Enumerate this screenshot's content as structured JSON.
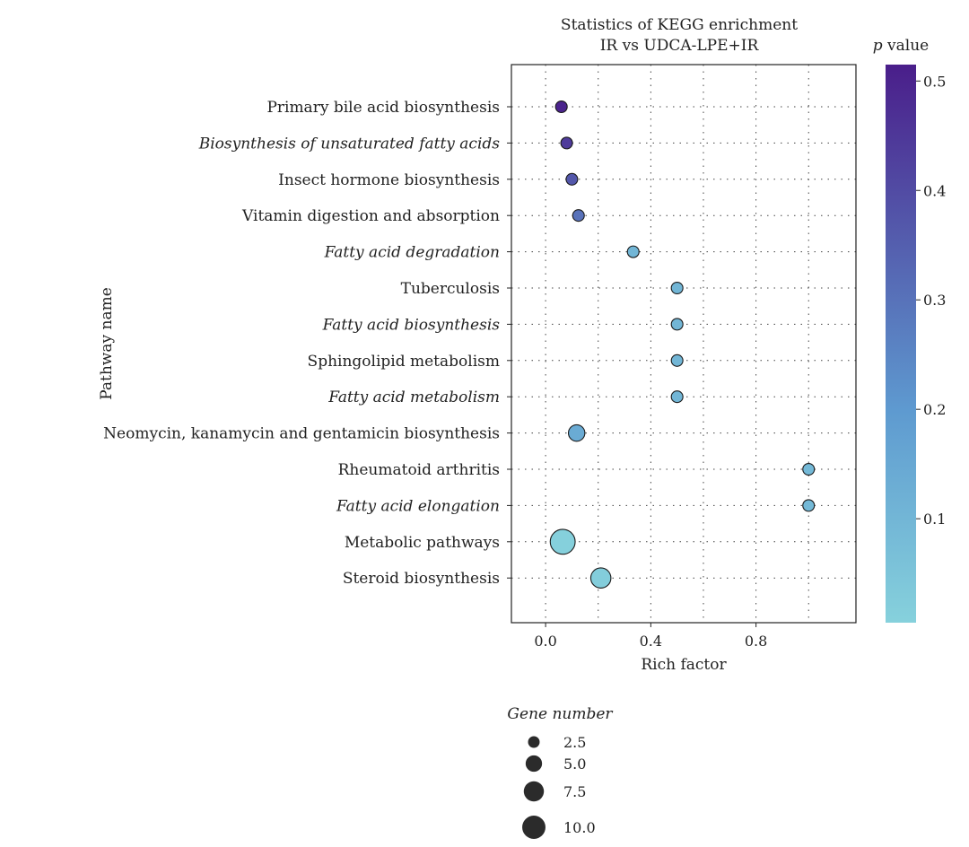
{
  "chart_data": {
    "type": "scatter",
    "title": "Statistics of KEGG enrichment",
    "subtitle": "IR vs UDCA-LPE+IR",
    "xlabel": "Rich factor",
    "ylabel": "Pathway name",
    "xlim": [
      -0.13,
      1.18
    ],
    "x_ticks": [
      0.0,
      0.4,
      0.8
    ],
    "x_tick_labels": [
      "0.0",
      "0.4",
      "0.8"
    ],
    "grid": true,
    "points": [
      {
        "pathway": "Primary bile acid biosynthesis",
        "italic": false,
        "rich_factor": 0.06,
        "p_value": 0.5,
        "gene_number": 2.5
      },
      {
        "pathway": "Biosynthesis of unsaturated fatty acids",
        "italic": true,
        "rich_factor": 0.08,
        "p_value": 0.44,
        "gene_number": 2.5
      },
      {
        "pathway": "Insect hormone biosynthesis",
        "italic": false,
        "rich_factor": 0.1,
        "p_value": 0.37,
        "gene_number": 2.5
      },
      {
        "pathway": "Vitamin digestion and absorption",
        "italic": false,
        "rich_factor": 0.125,
        "p_value": 0.3,
        "gene_number": 2.5
      },
      {
        "pathway": "Fatty acid degradation",
        "italic": true,
        "rich_factor": 0.333,
        "p_value": 0.1,
        "gene_number": 2.5
      },
      {
        "pathway": "Tuberculosis",
        "italic": false,
        "rich_factor": 0.5,
        "p_value": 0.1,
        "gene_number": 2.5
      },
      {
        "pathway": "Fatty acid biosynthesis",
        "italic": true,
        "rich_factor": 0.5,
        "p_value": 0.1,
        "gene_number": 2.5
      },
      {
        "pathway": "Sphingolipid metabolism",
        "italic": false,
        "rich_factor": 0.5,
        "p_value": 0.1,
        "gene_number": 2.5
      },
      {
        "pathway": "Fatty acid metabolism",
        "italic": true,
        "rich_factor": 0.5,
        "p_value": 0.1,
        "gene_number": 2.5
      },
      {
        "pathway": "Neomycin, kanamycin and gentamicin biosynthesis",
        "italic": false,
        "rich_factor": 0.118,
        "p_value": 0.14,
        "gene_number": 5.0
      },
      {
        "pathway": "Rheumatoid arthritis",
        "italic": false,
        "rich_factor": 1.0,
        "p_value": 0.09,
        "gene_number": 2.5
      },
      {
        "pathway": "Fatty acid elongation",
        "italic": true,
        "rich_factor": 1.0,
        "p_value": 0.09,
        "gene_number": 2.5
      },
      {
        "pathway": "Metabolic pathways",
        "italic": false,
        "rich_factor": 0.065,
        "p_value": 0.01,
        "gene_number": 11.5
      },
      {
        "pathway": "Steroid biosynthesis",
        "italic": false,
        "rich_factor": 0.21,
        "p_value": 0.02,
        "gene_number": 7.5
      }
    ],
    "color_legend": {
      "title_p": "p",
      "title_rest": "value",
      "min": 0.005,
      "max": 0.515,
      "ticks": [
        0.5,
        0.4,
        0.3,
        0.2,
        0.1
      ],
      "tick_labels": [
        "0.5",
        "0.4",
        "0.3",
        "0.2",
        "0.1"
      ],
      "low_color": "#86d1dc",
      "mid_color": "#5e9ad0",
      "high_color": "#4a1e8a"
    },
    "size_legend": {
      "title": "Gene number",
      "values": [
        2.5,
        5.0,
        7.5,
        10.0
      ],
      "labels": [
        "2.5",
        "5.0",
        "7.5",
        "10.0"
      ]
    }
  }
}
